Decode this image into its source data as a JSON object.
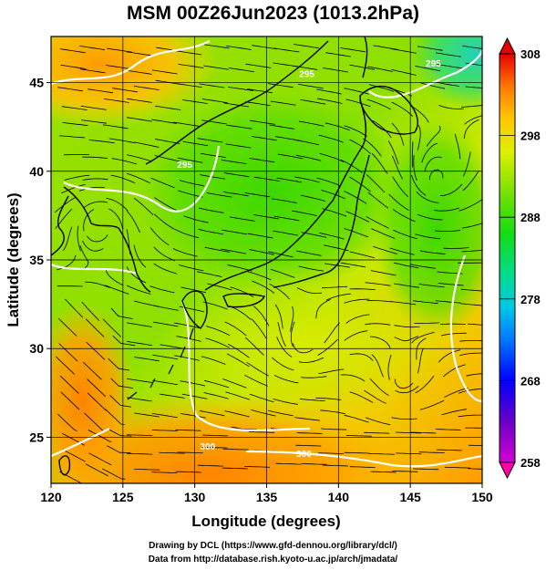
{
  "title": "MSM 00Z26Jun2023 (1013.2hPa)",
  "chart_data": {
    "type": "map",
    "xlabel": "Longitude (degrees)",
    "ylabel": "Latitude (degrees)",
    "xlim": [
      120,
      150
    ],
    "ylim": [
      22.4,
      47.6
    ],
    "x_ticks": [
      120,
      125,
      130,
      135,
      140,
      145,
      150
    ],
    "y_ticks": [
      25,
      30,
      35,
      40,
      45
    ],
    "grid": true,
    "colorbar": {
      "min": 258,
      "max": 308,
      "ticks": [
        308,
        298,
        288,
        278,
        268,
        258
      ],
      "palette": [
        "#d400d4",
        "#5a00c8",
        "#0000ff",
        "#0096ff",
        "#00d2d2",
        "#00dc64",
        "#32dc00",
        "#a0e600",
        "#e6f000",
        "#ffc800",
        "#ff8c00",
        "#ff3c00",
        "#e60000"
      ]
    },
    "contour_labels": [
      {
        "text": "295",
        "lon": 137.8,
        "lat": 45.3
      },
      {
        "text": "295",
        "lon": 129.3,
        "lat": 40.2
      },
      {
        "text": "295",
        "lon": 146.6,
        "lat": 45.9
      },
      {
        "text": "300",
        "lon": 130.9,
        "lat": 24.3
      },
      {
        "text": "300",
        "lon": 137.6,
        "lat": 23.9
      }
    ]
  },
  "credits": {
    "line1": "Drawing by DCL (https://www.gfd-dennou.org/library/dcl/)",
    "line2": "Data from http://database.rish.kyoto-u.ac.jp/arch/jmadata/"
  }
}
